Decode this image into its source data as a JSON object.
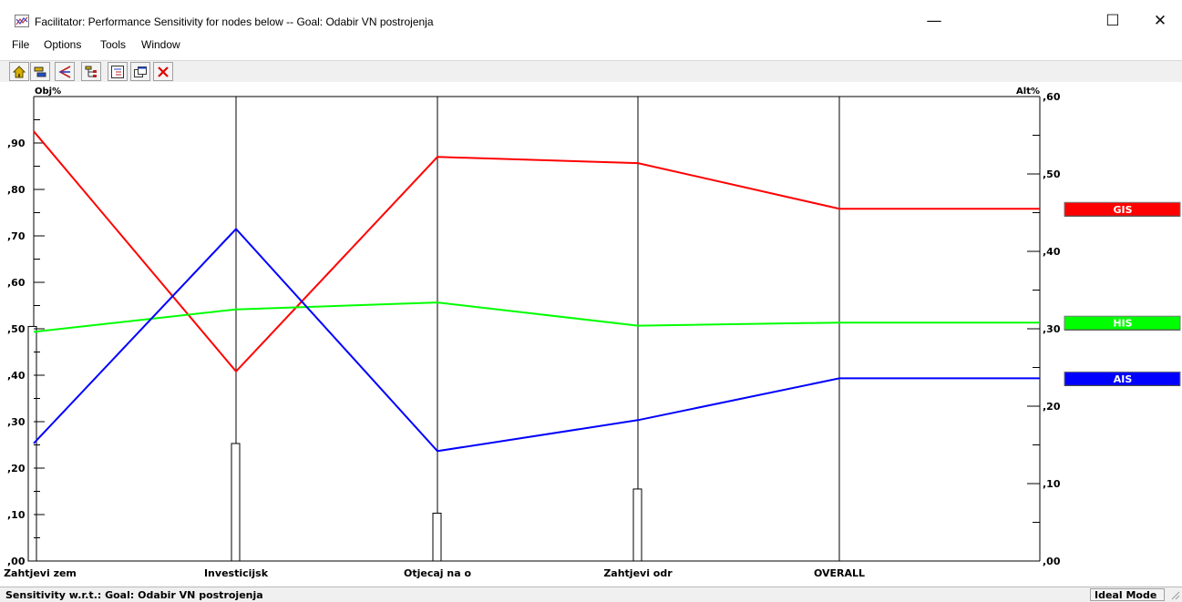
{
  "window": {
    "title": "Facilitator: Performance Sensitivity for nodes below -- Goal: Odabir VN postrojenja",
    "minimize_glyph": "—",
    "maximize_glyph": "☐",
    "close_glyph": "✕"
  },
  "menu": [
    "File",
    "Options",
    "Tools",
    "Window"
  ],
  "toolbar": {
    "icons": [
      "home-icon",
      "layers-icon",
      "branch-arrows-icon",
      "hierarchy-icon",
      "tree-view-icon",
      "windows-icon",
      "close-x-icon"
    ]
  },
  "colors": {
    "GIS": "#ff0000",
    "HIS": "#00ff00",
    "AIS": "#0000ff"
  },
  "chart_data": {
    "type": "line",
    "left_axis_label": "Obj%",
    "right_axis_label": "Alt%",
    "left_ylim": [
      0,
      1.0
    ],
    "right_ylim": [
      0,
      0.6
    ],
    "left_tick_labels": [
      ",00",
      ",10",
      ",20",
      ",30",
      ",40",
      ",50",
      ",60",
      ",70",
      ",80",
      ",90"
    ],
    "left_tick_values": [
      0,
      0.1,
      0.2,
      0.3,
      0.4,
      0.5,
      0.6,
      0.7,
      0.8,
      0.9
    ],
    "right_tick_labels": [
      ",00",
      ",10",
      ",20",
      ",30",
      ",40",
      ",50",
      ",60"
    ],
    "right_tick_values": [
      0,
      0.1,
      0.2,
      0.3,
      0.4,
      0.5,
      0.6
    ],
    "categories": [
      "Zahtjevi zem",
      "Investicijsk",
      "Otjecaj na o",
      "Zahtjevi odr",
      "OVERALL"
    ],
    "objective_bars": [
      0.505,
      0.253,
      0.103,
      0.155
    ],
    "series": [
      {
        "name": "GIS",
        "color": "#ff0000",
        "values": [
          0.555,
          0.245,
          0.522,
          0.514,
          0.455
        ]
      },
      {
        "name": "HIS",
        "color": "#00ff00",
        "values": [
          0.296,
          0.325,
          0.334,
          0.304,
          0.308
        ]
      },
      {
        "name": "AIS",
        "color": "#0000ff",
        "values": [
          0.152,
          0.429,
          0.142,
          0.182,
          0.236
        ]
      }
    ],
    "legend_placement": "right"
  },
  "status": {
    "left": "Sensitivity w.r.t.: Goal: Odabir VN postrojenja",
    "right": "Ideal Mode"
  }
}
